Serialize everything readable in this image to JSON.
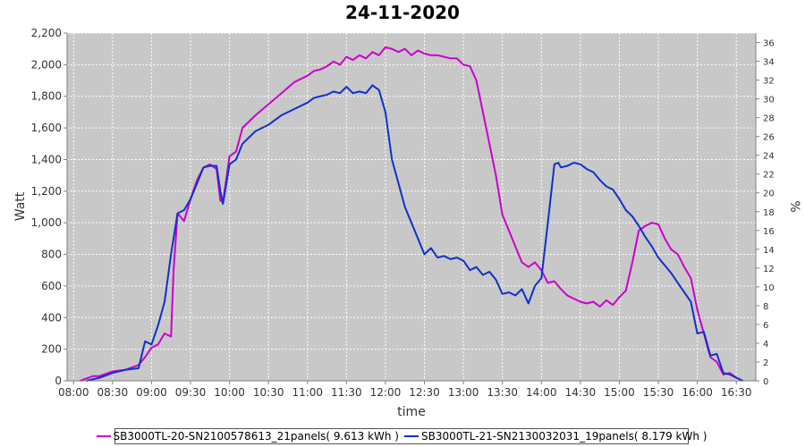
{
  "chart_data": {
    "type": "line",
    "title": "24-11-2020",
    "xlabel": "time",
    "ylabel": "Watt",
    "y2label": "%",
    "xlim": [
      "07:55",
      "16:45"
    ],
    "ylim": [
      0,
      2200
    ],
    "y2lim": [
      0,
      37
    ],
    "x_ticks": [
      "08:00",
      "08:30",
      "09:00",
      "09:30",
      "10:00",
      "10:30",
      "11:00",
      "11:30",
      "12:00",
      "12:30",
      "13:00",
      "13:30",
      "14:00",
      "14:30",
      "15:00",
      "15:30",
      "16:00",
      "16:30"
    ],
    "y_ticks": [
      "0",
      "200",
      "400",
      "600",
      "800",
      "1,000",
      "1,200",
      "1,400",
      "1,600",
      "1,800",
      "2,000",
      "2,200"
    ],
    "y2_ticks": [
      "0",
      "2",
      "4",
      "6",
      "8",
      "10",
      "12",
      "14",
      "16",
      "18",
      "20",
      "22",
      "24",
      "26",
      "28",
      "30",
      "32",
      "34",
      "36"
    ],
    "grid": true,
    "legend_position": "bottom",
    "series": [
      {
        "name": "SB3000TL-20-SN2100578613_21panels( 9.613 kWh )",
        "color": "#cc00cc",
        "x": [
          "08:05",
          "08:15",
          "08:20",
          "08:30",
          "08:40",
          "08:50",
          "08:55",
          "09:00",
          "09:05",
          "09:10",
          "09:15",
          "09:17",
          "09:20",
          "09:25",
          "09:30",
          "09:35",
          "09:40",
          "09:45",
          "09:50",
          "09:53",
          "09:55",
          "10:00",
          "10:05",
          "10:10",
          "10:20",
          "10:30",
          "10:40",
          "10:50",
          "11:00",
          "11:05",
          "11:10",
          "11:15",
          "11:20",
          "11:25",
          "11:30",
          "11:35",
          "11:40",
          "11:45",
          "11:50",
          "11:55",
          "12:00",
          "12:05",
          "12:10",
          "12:15",
          "12:20",
          "12:25",
          "12:30",
          "12:35",
          "12:40",
          "12:45",
          "12:50",
          "12:55",
          "13:00",
          "13:05",
          "13:10",
          "13:15",
          "13:20",
          "13:25",
          "13:30",
          "13:35",
          "13:40",
          "13:45",
          "13:50",
          "13:55",
          "14:00",
          "14:05",
          "14:10",
          "14:15",
          "14:20",
          "14:25",
          "14:30",
          "14:35",
          "14:40",
          "14:45",
          "14:50",
          "14:55",
          "15:00",
          "15:05",
          "15:10",
          "15:15",
          "15:20",
          "15:25",
          "15:30",
          "15:35",
          "15:40",
          "15:45",
          "15:50",
          "15:55",
          "16:00",
          "16:05",
          "16:10",
          "16:15",
          "16:20",
          "16:25",
          "16:30",
          "16:35"
        ],
        "values": [
          0,
          30,
          30,
          60,
          70,
          100,
          150,
          210,
          230,
          300,
          280,
          700,
          1060,
          1010,
          1150,
          1270,
          1350,
          1370,
          1340,
          1140,
          1130,
          1420,
          1450,
          1600,
          1680,
          1750,
          1820,
          1890,
          1930,
          1960,
          1970,
          1990,
          2020,
          2000,
          2050,
          2030,
          2060,
          2040,
          2080,
          2060,
          2110,
          2100,
          2080,
          2100,
          2060,
          2090,
          2070,
          2060,
          2060,
          2050,
          2040,
          2040,
          2000,
          1990,
          1900,
          1700,
          1500,
          1300,
          1050,
          950,
          850,
          750,
          720,
          750,
          700,
          620,
          630,
          580,
          540,
          520,
          500,
          490,
          500,
          470,
          510,
          480,
          530,
          570,
          750,
          950,
          980,
          1000,
          990,
          900,
          830,
          800,
          720,
          650,
          450,
          300,
          150,
          120,
          40,
          50,
          20,
          0
        ]
      },
      {
        "name": "SB3000TL-21-SN2130032031_19panels( 8.179 kWh )",
        "color": "#1030cc",
        "x": [
          "08:10",
          "08:20",
          "08:30",
          "08:40",
          "08:50",
          "08:55",
          "09:00",
          "09:05",
          "09:10",
          "09:15",
          "09:20",
          "09:25",
          "09:30",
          "09:35",
          "09:40",
          "09:45",
          "09:50",
          "09:53",
          "09:55",
          "10:00",
          "10:05",
          "10:10",
          "10:20",
          "10:30",
          "10:40",
          "10:50",
          "11:00",
          "11:05",
          "11:10",
          "11:15",
          "11:20",
          "11:25",
          "11:30",
          "11:35",
          "11:40",
          "11:45",
          "11:50",
          "11:55",
          "12:00",
          "12:05",
          "12:10",
          "12:15",
          "12:20",
          "12:25",
          "12:30",
          "12:35",
          "12:40",
          "12:45",
          "12:50",
          "12:55",
          "13:00",
          "13:05",
          "13:10",
          "13:15",
          "13:20",
          "13:25",
          "13:30",
          "13:35",
          "13:40",
          "13:45",
          "13:50",
          "13:55",
          "14:00",
          "14:05",
          "14:10",
          "14:13",
          "14:15",
          "14:20",
          "14:25",
          "14:30",
          "14:35",
          "14:40",
          "14:45",
          "14:50",
          "14:55",
          "15:00",
          "15:05",
          "15:10",
          "15:15",
          "15:20",
          "15:25",
          "15:30",
          "15:35",
          "15:40",
          "15:45",
          "15:50",
          "15:55",
          "16:00",
          "16:05",
          "16:10",
          "16:15",
          "16:20",
          "16:25",
          "16:30",
          "16:35"
        ],
        "values": [
          0,
          20,
          50,
          70,
          80,
          250,
          230,
          350,
          500,
          800,
          1060,
          1080,
          1150,
          1250,
          1350,
          1360,
          1360,
          1200,
          1120,
          1370,
          1400,
          1500,
          1580,
          1620,
          1680,
          1720,
          1760,
          1790,
          1800,
          1810,
          1830,
          1820,
          1860,
          1820,
          1830,
          1820,
          1870,
          1840,
          1700,
          1400,
          1250,
          1100,
          1000,
          900,
          800,
          840,
          780,
          790,
          770,
          780,
          760,
          700,
          720,
          670,
          690,
          640,
          550,
          560,
          540,
          580,
          490,
          600,
          650,
          1000,
          1370,
          1380,
          1350,
          1360,
          1380,
          1370,
          1340,
          1320,
          1270,
          1230,
          1210,
          1150,
          1080,
          1040,
          980,
          910,
          850,
          780,
          730,
          680,
          620,
          560,
          500,
          300,
          310,
          160,
          170,
          50,
          40,
          20,
          0
        ]
      }
    ]
  }
}
